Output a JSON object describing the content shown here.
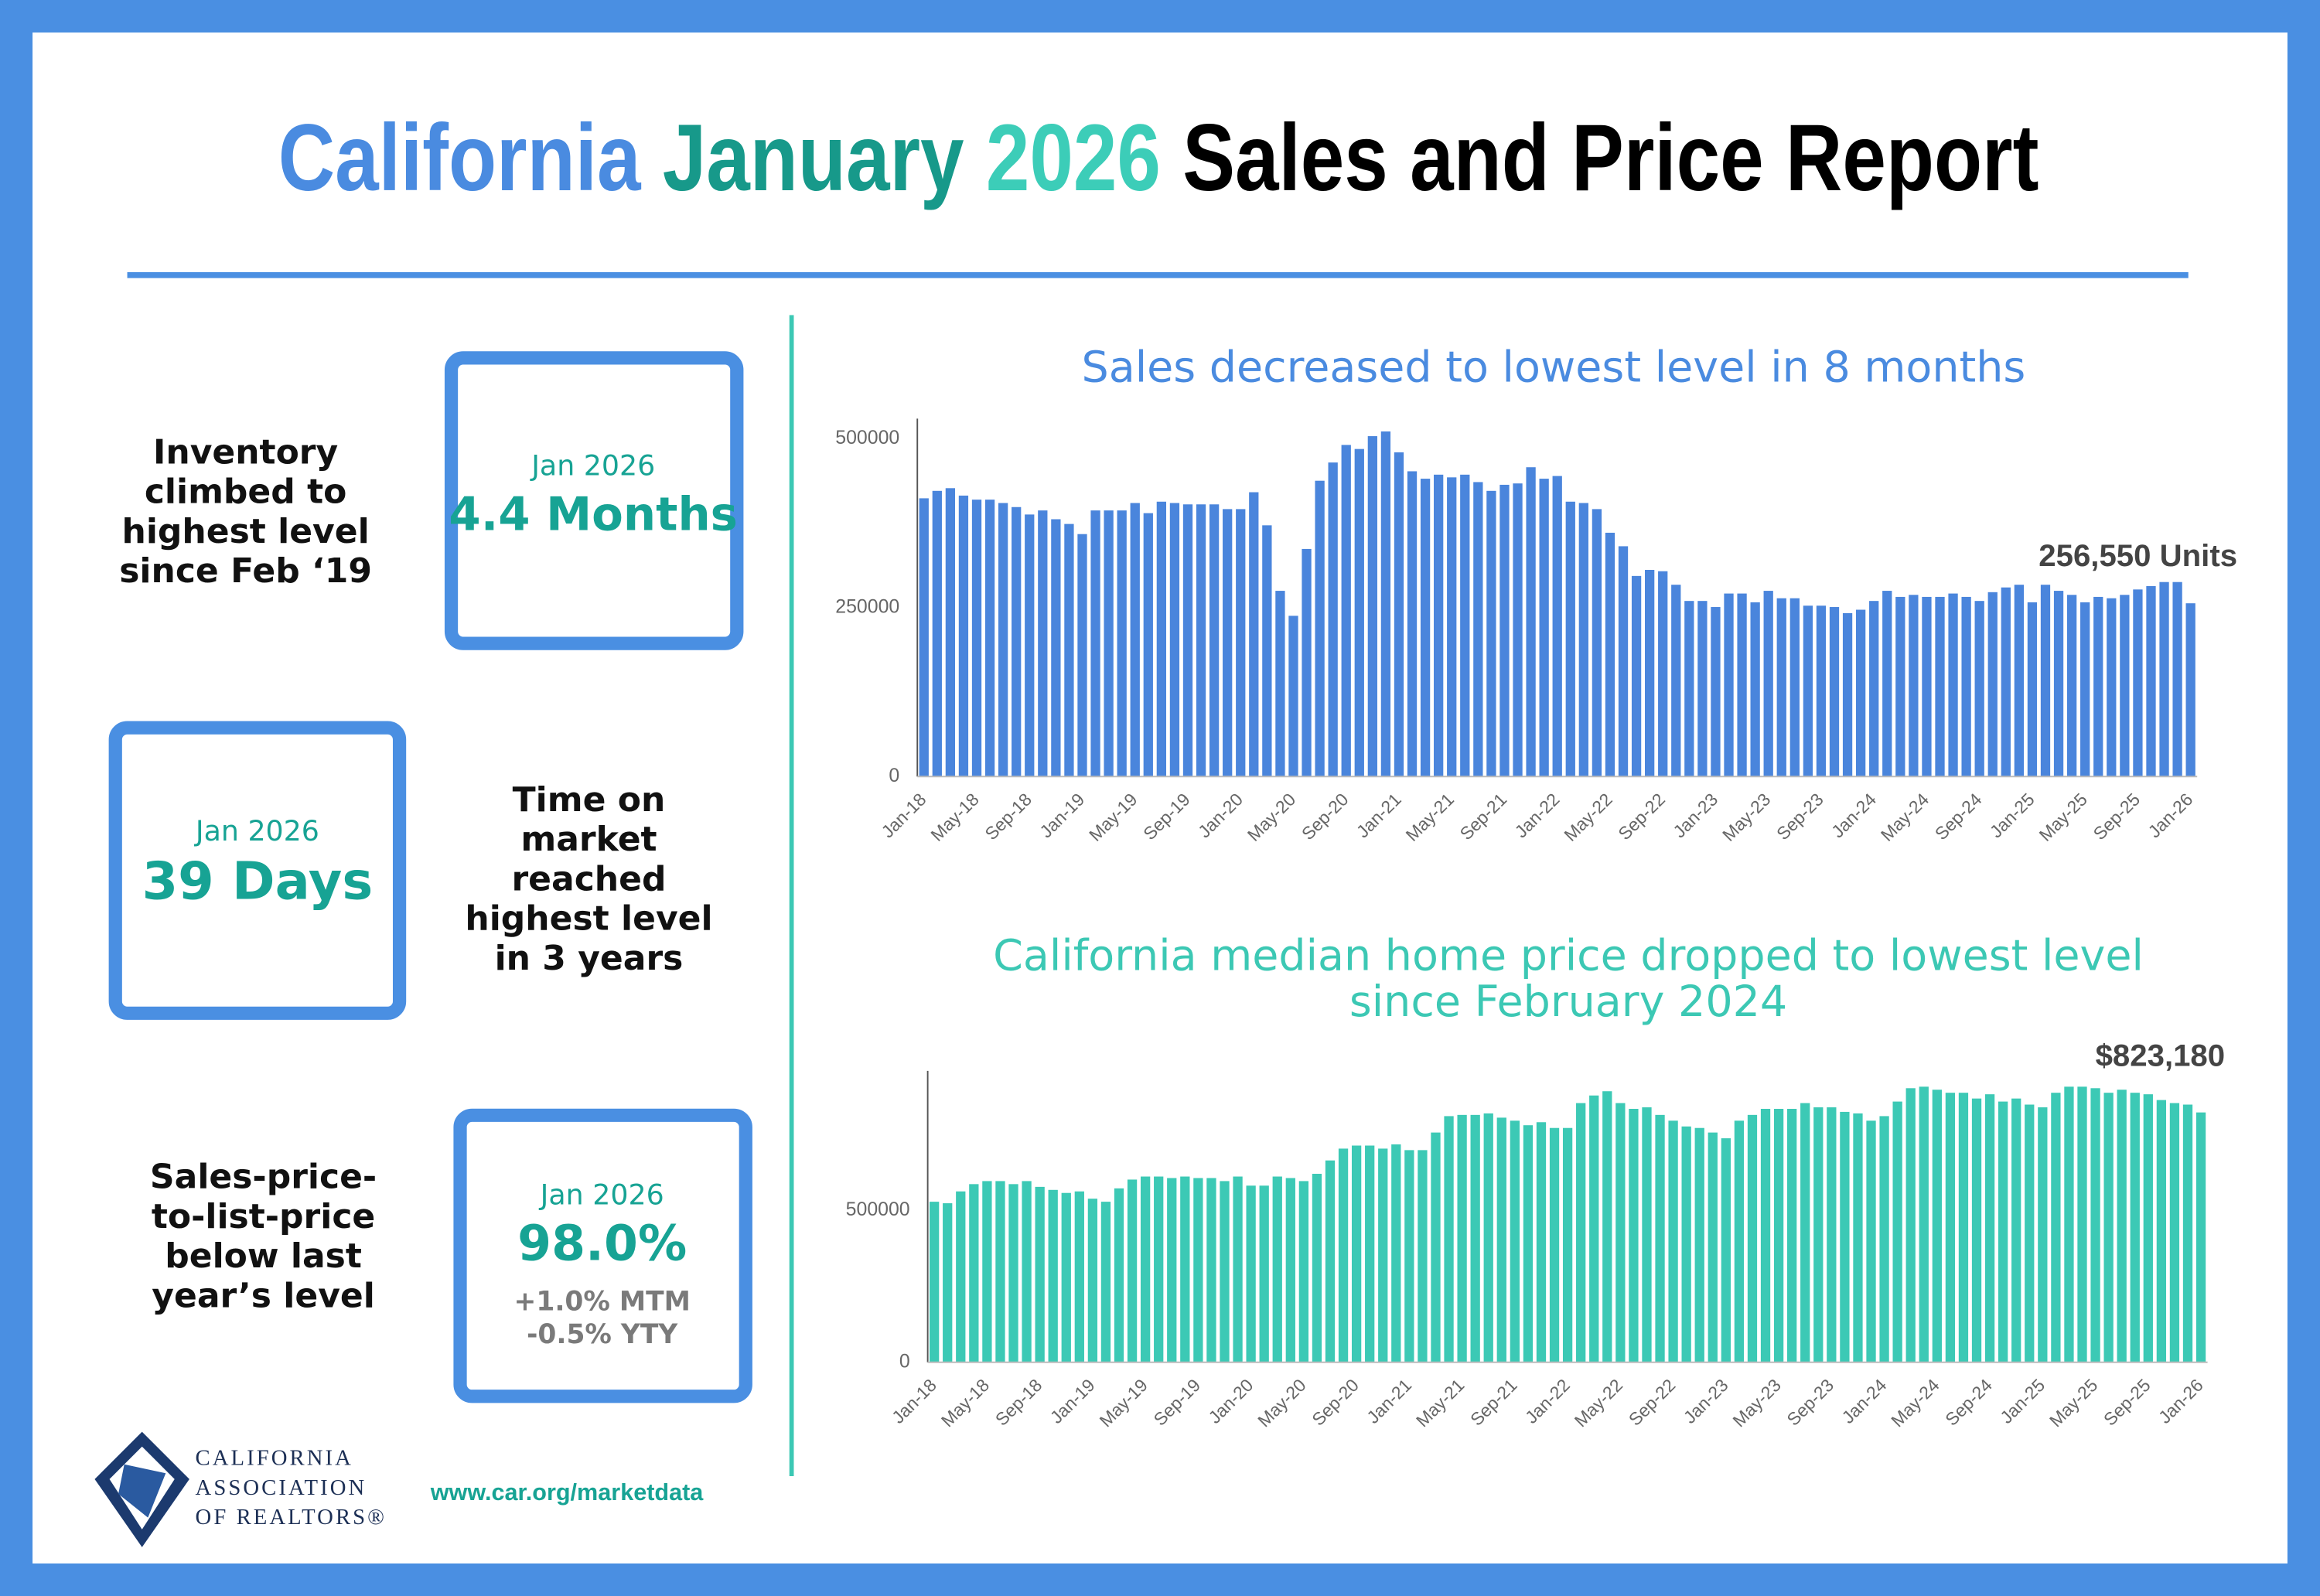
{
  "header": {
    "title": [
      {
        "text": "California",
        "color": "#4a8be0"
      },
      {
        "text": "January",
        "color": "#17998a"
      },
      {
        "text": "2026",
        "color": "#3ccdb8"
      },
      {
        "text": "Sales and Price Report",
        "color": "#000000"
      }
    ]
  },
  "panels": [
    {
      "text": [
        "Inventory",
        "climbed to",
        "highest level",
        "since Feb ‘19"
      ],
      "box": [
        "Jan 2026",
        "4.4 Months"
      ]
    },
    {
      "text": [
        "Time on",
        "market",
        "reached",
        "highest level",
        "in 3 years"
      ],
      "box": [
        "Jan 2026",
        "39 Days"
      ]
    },
    {
      "text": [
        "Sales-price-",
        "to-list-price",
        "below last",
        "year’s level"
      ],
      "box": [
        "Jan 2026",
        "98.0%"
      ],
      "box_notes": [
        "+1.0% MTM",
        "-0.5% YTY"
      ]
    }
  ],
  "footer": {
    "logo": [
      "CALIFORNIA",
      "ASSOCIATION",
      "OF REALTORS®"
    ],
    "url": "www.car.org/marketdata"
  },
  "chart_data": [
    {
      "type": "bar",
      "title": "Sales decreased to lowest level in 8 months",
      "title_color": "#4a8be0",
      "color": "#4a85dc",
      "annotation": "256,550 Units",
      "grid": false,
      "ylim": [
        0,
        530000
      ],
      "yticks": [
        0,
        250000,
        500000
      ],
      "categories": [
        "Jan-18",
        null,
        null,
        null,
        "May-18",
        null,
        null,
        null,
        "Sep-18",
        null,
        null,
        null,
        "Jan-19",
        null,
        null,
        null,
        "May-19",
        null,
        null,
        null,
        "Sep-19",
        null,
        null,
        null,
        "Jan-20",
        null,
        null,
        null,
        "May-20",
        null,
        null,
        null,
        "Sep-20",
        null,
        null,
        null,
        "Jan-21",
        null,
        null,
        null,
        "May-21",
        null,
        null,
        null,
        "Sep-21",
        null,
        null,
        null,
        "Jan-22",
        null,
        null,
        null,
        "May-22",
        null,
        null,
        null,
        "Sep-22",
        null,
        null,
        null,
        "Jan-23",
        null,
        null,
        null,
        "May-23",
        null,
        null,
        null,
        "Sep-23",
        null,
        null,
        null,
        "Jan-24",
        null,
        null,
        null,
        "May-24",
        null,
        null,
        null,
        "Sep-24",
        null,
        null,
        null,
        "Jan-25",
        null,
        null,
        null,
        "May-25",
        null,
        null,
        null,
        "Sep-25",
        null,
        null,
        null,
        "Jan-26"
      ],
      "values": [
        412000,
        423000,
        427000,
        416000,
        410000,
        410000,
        405000,
        399000,
        388000,
        394000,
        381000,
        374000,
        359000,
        394000,
        394000,
        394000,
        405000,
        390000,
        407000,
        405000,
        403000,
        403000,
        403000,
        396000,
        396000,
        421000,
        372000,
        275000,
        238000,
        337000,
        438000,
        465000,
        491000,
        485000,
        504000,
        511000,
        480000,
        452000,
        441000,
        447000,
        443000,
        447000,
        436000,
        423000,
        432000,
        434000,
        458000,
        441000,
        445000,
        407000,
        405000,
        396000,
        361000,
        341000,
        297000,
        306000,
        304000,
        284000,
        260000,
        260000,
        251000,
        271000,
        271000,
        258000,
        275000,
        264000,
        264000,
        253000,
        253000,
        251000,
        242000,
        247000,
        260000,
        275000,
        266000,
        269000,
        266000,
        266000,
        271000,
        266000,
        260000,
        273000,
        280000,
        284000,
        258000,
        284000,
        275000,
        269000,
        258000,
        266000,
        264000,
        269000,
        277000,
        282000,
        288000,
        288000,
        256550
      ]
    },
    {
      "type": "bar",
      "title": [
        "California median home price dropped to lowest level",
        "since February 2024"
      ],
      "title_color": "#3cc8b4",
      "color": "#3cc9b5",
      "annotation": "$823,180",
      "grid": false,
      "ylim": [
        0,
        960000
      ],
      "yticks": [
        0,
        500000
      ],
      "categories": [
        "Jan-18",
        null,
        null,
        null,
        "May-18",
        null,
        null,
        null,
        "Sep-18",
        null,
        null,
        null,
        "Jan-19",
        null,
        null,
        null,
        "May-19",
        null,
        null,
        null,
        "Sep-19",
        null,
        null,
        null,
        "Jan-20",
        null,
        null,
        null,
        "May-20",
        null,
        null,
        null,
        "Sep-20",
        null,
        null,
        null,
        "Jan-21",
        null,
        null,
        null,
        "May-21",
        null,
        null,
        null,
        "Sep-21",
        null,
        null,
        null,
        "Jan-22",
        null,
        null,
        null,
        "May-22",
        null,
        null,
        null,
        "Sep-22",
        null,
        null,
        null,
        "Jan-23",
        null,
        null,
        null,
        "May-23",
        null,
        null,
        null,
        "Sep-23",
        null,
        null,
        null,
        "Jan-24",
        null,
        null,
        null,
        "May-24",
        null,
        null,
        null,
        "Sep-24",
        null,
        null,
        null,
        "Jan-25",
        null,
        null,
        null,
        "May-25",
        null,
        null,
        null,
        "Sep-25",
        null,
        null,
        null,
        "Jan-26"
      ],
      "values": [
        529000,
        524000,
        563000,
        587000,
        597000,
        597000,
        587000,
        597000,
        578000,
        568000,
        558000,
        563000,
        539000,
        529000,
        573000,
        602000,
        612000,
        612000,
        607000,
        612000,
        607000,
        607000,
        597000,
        612000,
        582000,
        582000,
        612000,
        607000,
        597000,
        621000,
        665000,
        704000,
        714000,
        714000,
        704000,
        718000,
        699000,
        699000,
        757000,
        811000,
        815000,
        815000,
        820000,
        806000,
        796000,
        781000,
        791000,
        772000,
        772000,
        854000,
        879000,
        893000,
        854000,
        835000,
        840000,
        815000,
        796000,
        777000,
        772000,
        757000,
        738000,
        796000,
        815000,
        835000,
        835000,
        835000,
        854000,
        840000,
        840000,
        825000,
        820000,
        796000,
        811000,
        859000,
        903000,
        908000,
        898000,
        888000,
        888000,
        869000,
        883000,
        859000,
        869000,
        849000,
        840000,
        888000,
        908000,
        908000,
        903000,
        888000,
        898000,
        888000,
        883000,
        864000,
        854000,
        849000,
        823180
      ]
    }
  ]
}
